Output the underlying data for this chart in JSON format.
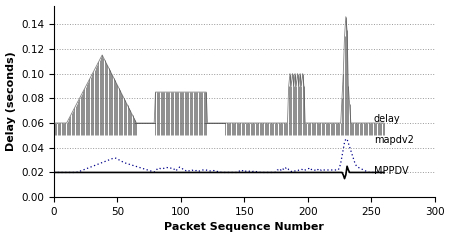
{
  "xlim": [
    0,
    300
  ],
  "ylim": [
    0,
    0.155
  ],
  "yticks": [
    0,
    0.02,
    0.04,
    0.06,
    0.08,
    0.1,
    0.12,
    0.14
  ],
  "xticks": [
    0,
    50,
    100,
    150,
    200,
    250,
    300
  ],
  "xlabel": "Packet Sequence Number",
  "ylabel": "Delay (seconds)",
  "background_color": "#ffffff",
  "grid_color": "#999999",
  "delay_color": "#404040",
  "mapdv2_color": "#00008B",
  "mppdv_color": "#000000"
}
